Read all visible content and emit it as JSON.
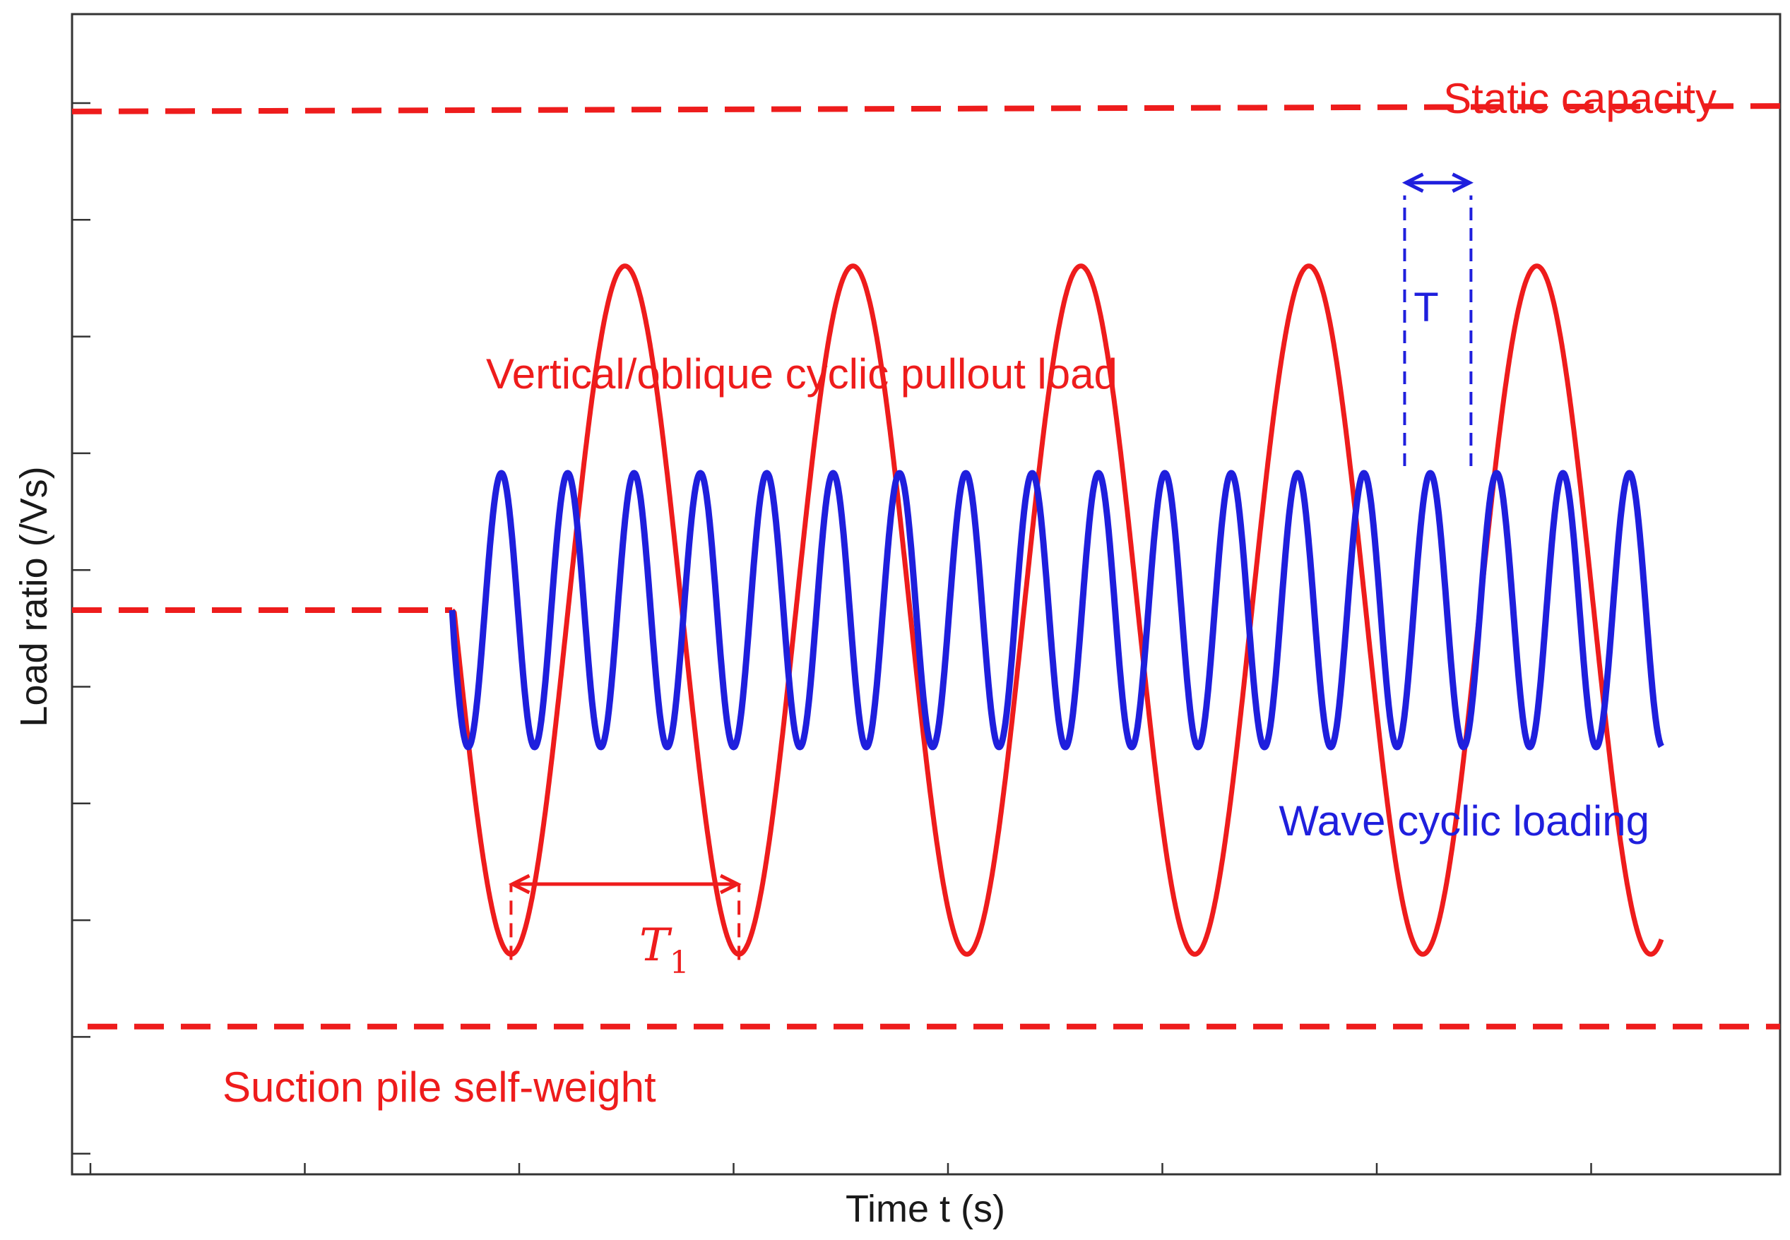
{
  "chart_data": {
    "type": "line",
    "title": "",
    "xlabel": "Time t (s)",
    "ylabel": "Load ratio (/Vs)",
    "tick_labels_shown": false,
    "grid": false,
    "colors": {
      "pullout": "#ee1c1c",
      "wave": "#1f1fdd",
      "axis": "#333333"
    },
    "reference_lines": [
      {
        "label": "Static capacity",
        "y_start": 0.955,
        "y_end": 0.96,
        "style": "dashed",
        "color": "#ee1c1c"
      },
      {
        "label": "Suction pile self-weight",
        "y": 0.12,
        "style": "dashed",
        "color": "#ee1c1c"
      }
    ],
    "initial_level": {
      "y": 0.5,
      "x_end": 3.4,
      "style": "dashed"
    },
    "series": [
      {
        "name": "Vertical/oblique cyclic pullout load",
        "start_x": 3.4,
        "end_x": 14.7,
        "mean": 0.5,
        "amplitude": 0.314,
        "period": 2.13,
        "first_trough_x": 3.95,
        "style": "solid"
      },
      {
        "name": "Wave cyclic loading",
        "start_x": 3.4,
        "end_x": 14.7,
        "mean": 0.5,
        "amplitude": 0.125,
        "period": 0.62,
        "first_trough_x": 3.55,
        "style": "solid"
      }
    ],
    "annotations": {
      "T1": {
        "symbol": "T",
        "subscript": "1",
        "from_x": 3.95,
        "to_x": 6.08,
        "arrow_y": 0.25
      },
      "T": {
        "symbol": "T",
        "from_x": 12.3,
        "to_x": 12.92,
        "arrow_y": 0.89
      }
    },
    "xlim": [
      0,
      15.5
    ],
    "ylim": [
      0,
      1
    ]
  }
}
